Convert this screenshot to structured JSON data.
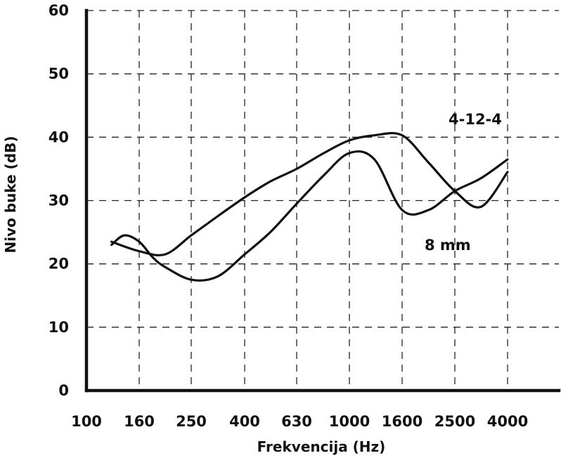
{
  "chart_data": {
    "type": "line",
    "xlabel": "Frekvencija (Hz)",
    "ylabel": "Nivo buke (dB)",
    "x_scale": "log",
    "categories": [
      "100",
      "160",
      "250",
      "400",
      "630",
      "1000",
      "1600",
      "2500",
      "4000"
    ],
    "ylim": [
      0,
      60
    ],
    "yticks": [
      "0",
      "10",
      "20",
      "30",
      "40",
      "50",
      "60"
    ],
    "grid": true,
    "series": [
      {
        "name": "4-12-4",
        "x": [
          125,
          160,
          200,
          250,
          315,
          400,
          500,
          630,
          800,
          1000,
          1250,
          1600,
          2000,
          2500,
          3150,
          4000
        ],
        "y": [
          23.5,
          22,
          21.5,
          24.5,
          27.5,
          30.5,
          33,
          35,
          37.5,
          39.5,
          40.3,
          40.3,
          36,
          31.5,
          29,
          34.5
        ]
      },
      {
        "name": "8 mm",
        "x": [
          125,
          140,
          160,
          180,
          200,
          250,
          315,
          400,
          500,
          630,
          800,
          1000,
          1250,
          1600,
          2000,
          2500,
          3150,
          4000
        ],
        "y": [
          23,
          24.5,
          23.5,
          21,
          19.5,
          17.5,
          18,
          21.5,
          25,
          29.5,
          34,
          37.5,
          36.5,
          28.5,
          28.5,
          31.5,
          33.5,
          36.5
        ]
      }
    ]
  }
}
